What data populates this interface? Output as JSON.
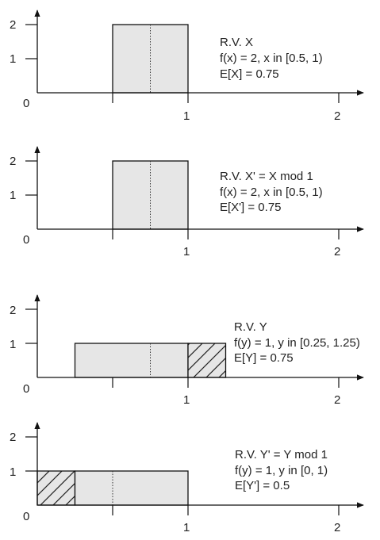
{
  "panels": [
    {
      "y_ticks": [
        "1",
        "2"
      ],
      "x_ticks": [
        "0",
        "1",
        "2"
      ],
      "x_axis_max": 2,
      "y_axis_max": 2,
      "bars": [
        {
          "x_start": 0.5,
          "x_end": 1.0,
          "height": 2,
          "hatched": false
        }
      ],
      "mean": 0.75,
      "caption": [
        "R.V.  X",
        "f(x) = 2,  x in [0.5, 1)",
        "E[X] = 0.75"
      ]
    },
    {
      "y_ticks": [
        "1",
        "2"
      ],
      "x_ticks": [
        "0",
        "1",
        "2"
      ],
      "x_axis_max": 2,
      "y_axis_max": 2,
      "bars": [
        {
          "x_start": 0.5,
          "x_end": 1.0,
          "height": 2,
          "hatched": false
        }
      ],
      "mean": 0.75,
      "caption": [
        "R.V.  X' = X mod 1",
        "f(x) = 2,  x in [0.5, 1)",
        "E[X'] = 0.75"
      ]
    },
    {
      "y_ticks": [
        "1",
        "2"
      ],
      "x_ticks": [
        "0",
        "1",
        "2"
      ],
      "x_axis_max": 2,
      "y_axis_max": 2,
      "bars": [
        {
          "x_start": 0.25,
          "x_end": 1.0,
          "height": 1,
          "hatched": false
        },
        {
          "x_start": 1.0,
          "x_end": 1.25,
          "height": 1,
          "hatched": true
        }
      ],
      "mean": 0.75,
      "caption": [
        "R.V.  Y",
        "f(y) = 1,  y in [0.25, 1.25)",
        "E[Y] = 0.75"
      ]
    },
    {
      "y_ticks": [
        "1",
        "2"
      ],
      "x_ticks": [
        "0",
        "1",
        "2"
      ],
      "x_axis_max": 2,
      "y_axis_max": 2,
      "bars": [
        {
          "x_start": 0.0,
          "x_end": 0.25,
          "height": 1,
          "hatched": true
        },
        {
          "x_start": 0.25,
          "x_end": 1.0,
          "height": 1,
          "hatched": false
        }
      ],
      "mean": 0.5,
      "caption": [
        "R.V.  Y' = Y mod 1",
        "f(y) = 1,  y in [0, 1)",
        "E[Y'] = 0.5"
      ]
    }
  ]
}
